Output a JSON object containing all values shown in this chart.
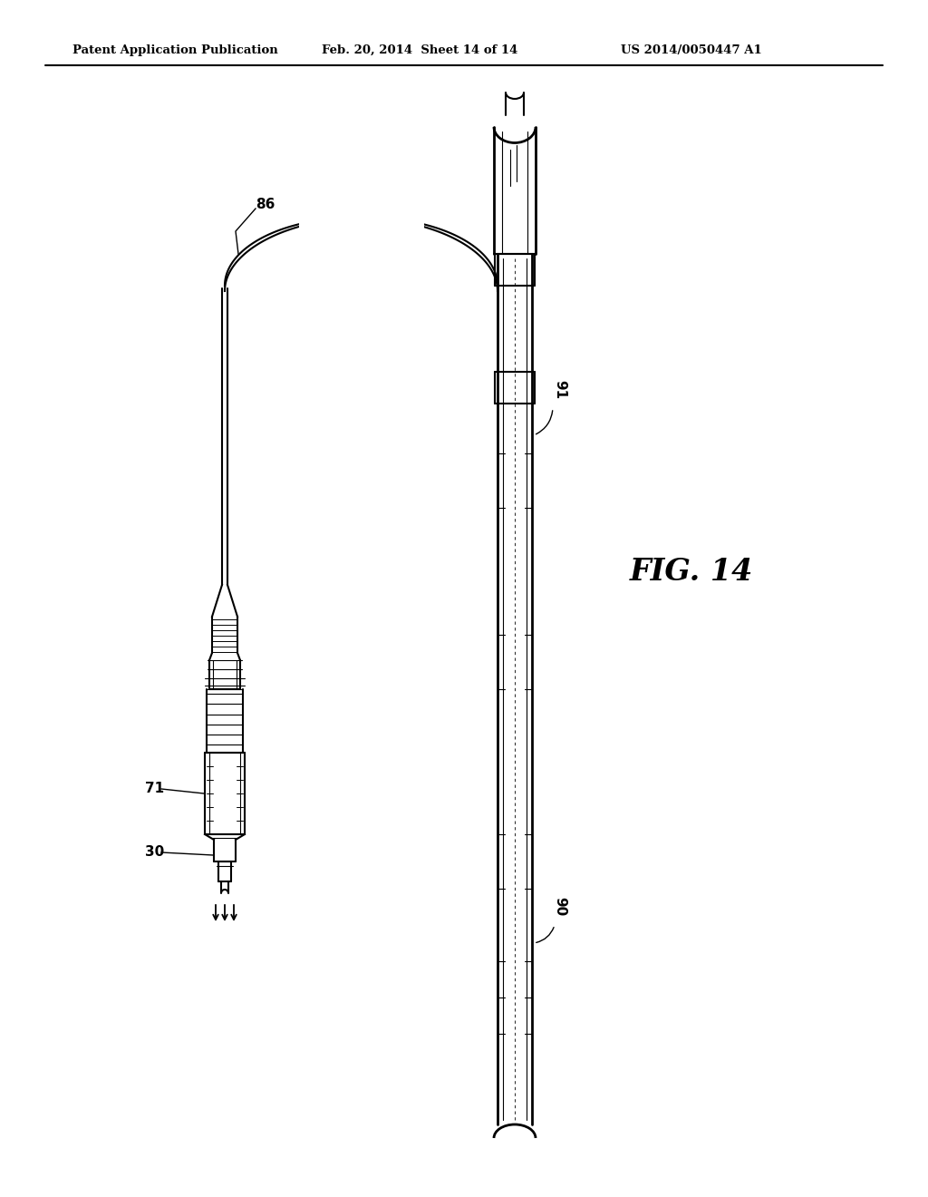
{
  "header_left": "Patent Application Publication",
  "header_mid": "Feb. 20, 2014  Sheet 14 of 14",
  "header_right": "US 2014/0050447 A1",
  "fig_label": "FIG. 14",
  "label_86": "86",
  "label_71": "71",
  "label_30": "30",
  "label_91": "91",
  "label_90": "90",
  "bg_color": "#ffffff",
  "line_color": "#000000",
  "lw_thin": 0.8,
  "lw_med": 1.5,
  "lw_thick": 2.0
}
